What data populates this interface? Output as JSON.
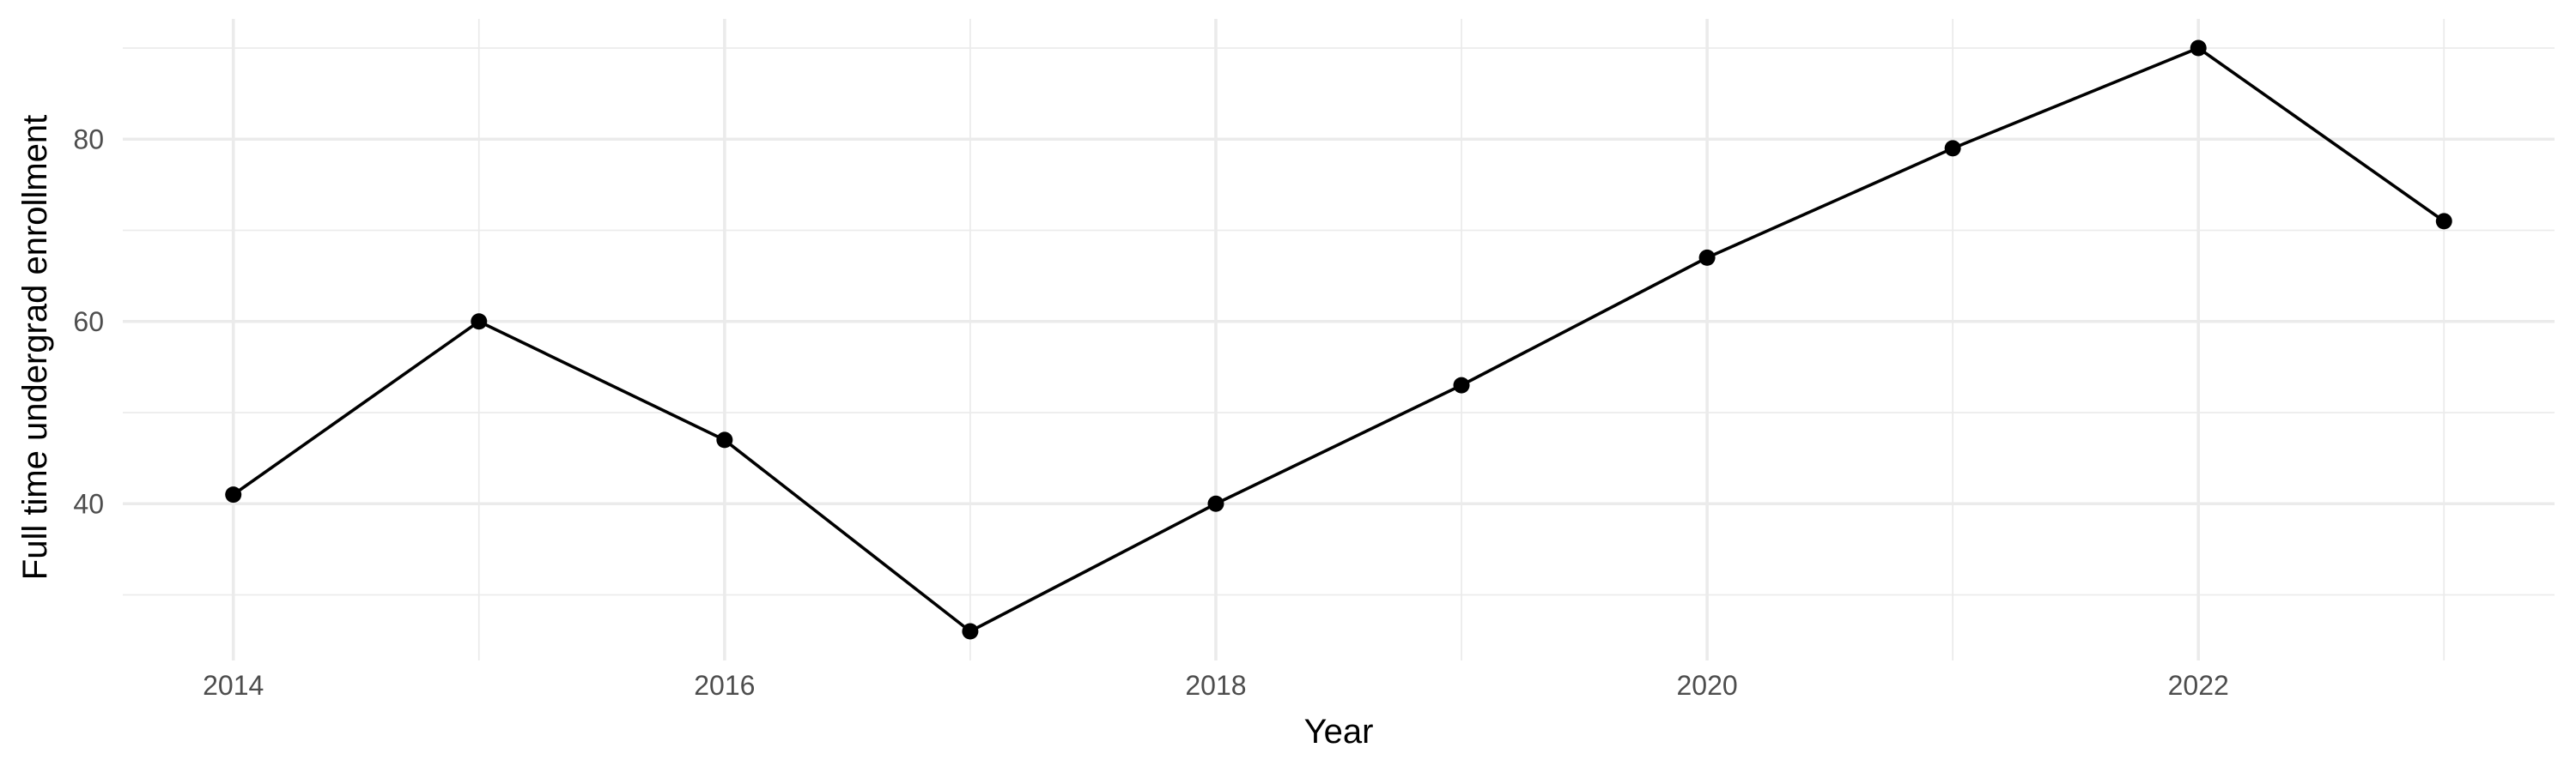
{
  "chart_data": {
    "type": "line",
    "xlabel": "Year",
    "ylabel": "Full time undergrad enrollment",
    "x": [
      2014,
      2015,
      2016,
      2017,
      2018,
      2019,
      2020,
      2021,
      2022,
      2023
    ],
    "series": [
      {
        "values": [
          41,
          60,
          47,
          26,
          40,
          53,
          67,
          79,
          90,
          71
        ]
      }
    ],
    "xticks": [
      2014,
      2016,
      2018,
      2020,
      2022
    ],
    "xticklabels": [
      "2014",
      "2016",
      "2018",
      "2020",
      "2022"
    ],
    "yticks": [
      40,
      60,
      80
    ],
    "yticklabels": [
      "40",
      "60",
      "80"
    ],
    "xlim": [
      2013.55,
      2023.45
    ],
    "ylim": [
      22.8,
      93.2
    ],
    "grid": true,
    "legend": "none",
    "line_color": "#000000",
    "grid_color": "#ebebeb",
    "tick_label_color": "#4d4d4d"
  }
}
